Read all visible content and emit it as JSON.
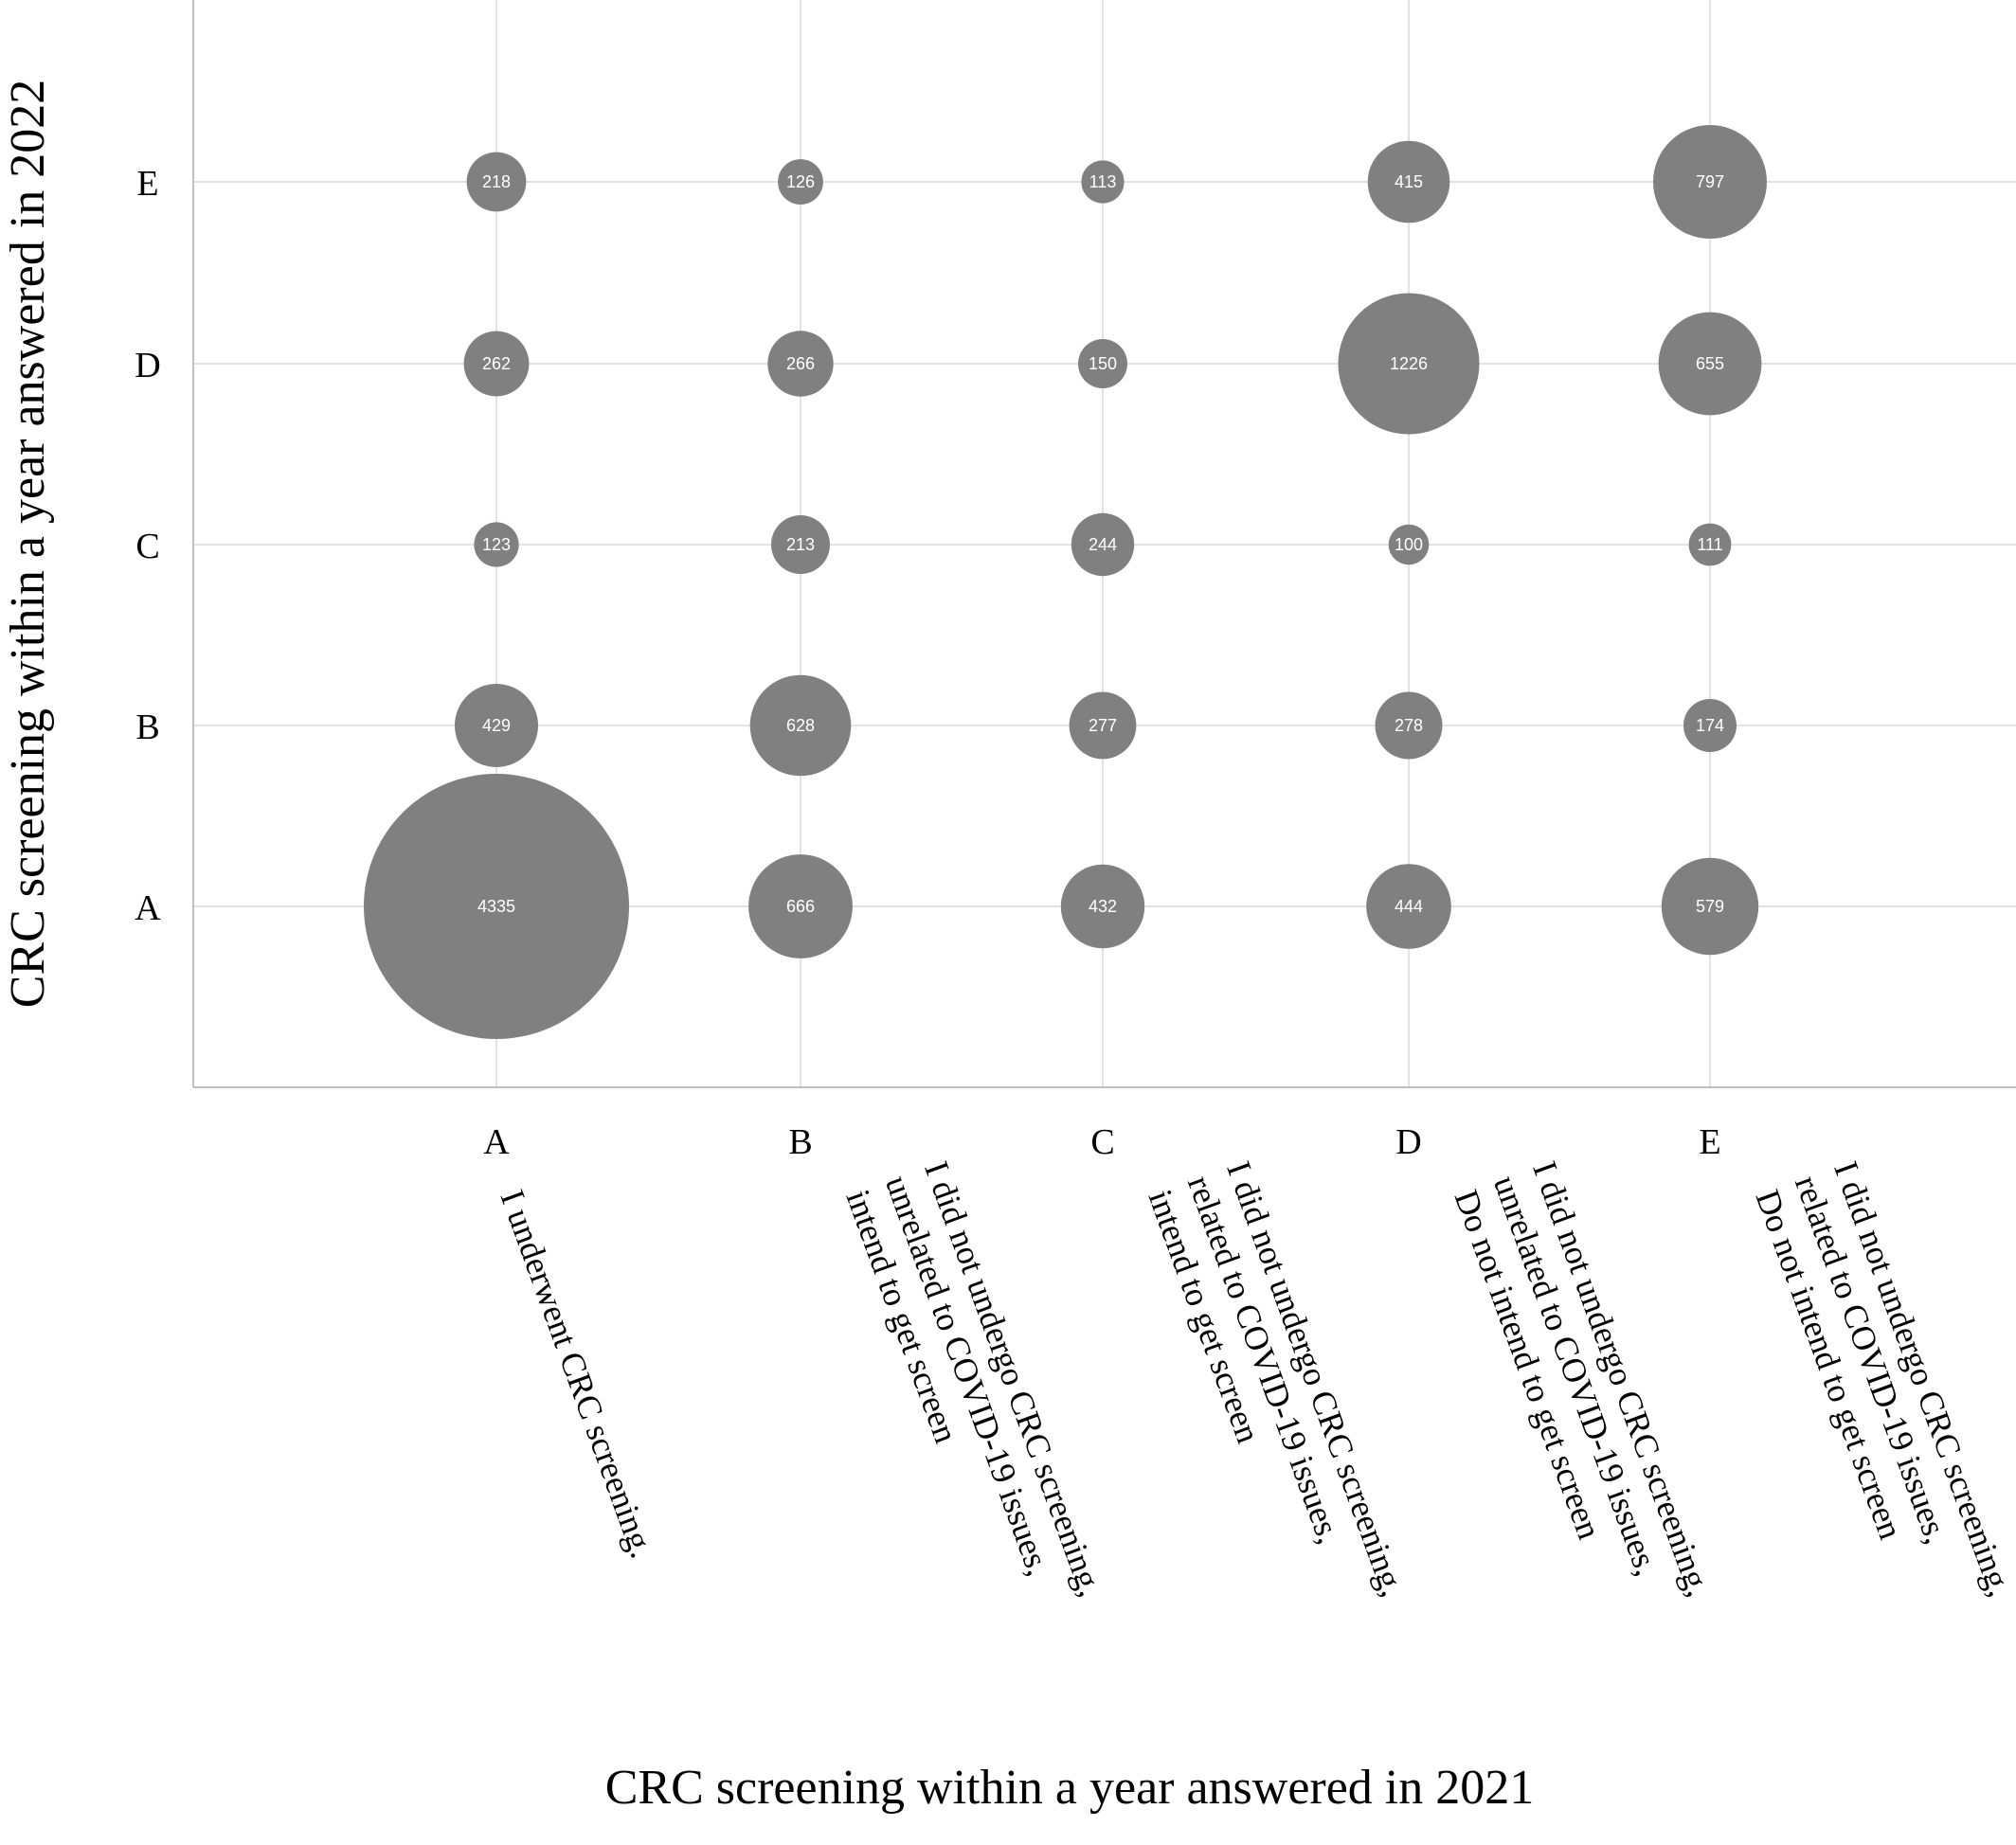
{
  "chart_data": {
    "type": "bubble",
    "title": "",
    "xlabel": "CRC screening within a year answered in 2021",
    "ylabel": "CRC screening within a year answered in 2022",
    "x_categories": [
      "A",
      "B",
      "C",
      "D",
      "E"
    ],
    "y_categories": [
      "A",
      "B",
      "C",
      "D",
      "E"
    ],
    "x_category_descriptions": [
      [
        "I underwent CRC screening."
      ],
      [
        "I did not undergo CRC screening,",
        "unrelated to COVID-19 issues,",
        "intend to get screen"
      ],
      [
        "I did not undergo CRC screening,",
        "related to COVID-19 issues,",
        "intend to get screen"
      ],
      [
        "I did not undergo CRC screening,",
        "unrelated to COVID-19 issues,",
        "Do not intend to get screen"
      ],
      [
        "I did not undergo CRC screening,",
        "related to COVID-19 issues,",
        "Do not intend to get screen"
      ]
    ],
    "points": [
      {
        "x": "A",
        "y": "A",
        "value": 4335
      },
      {
        "x": "A",
        "y": "B",
        "value": 429
      },
      {
        "x": "A",
        "y": "C",
        "value": 123
      },
      {
        "x": "A",
        "y": "D",
        "value": 262
      },
      {
        "x": "A",
        "y": "E",
        "value": 218
      },
      {
        "x": "B",
        "y": "A",
        "value": 666
      },
      {
        "x": "B",
        "y": "B",
        "value": 628
      },
      {
        "x": "B",
        "y": "C",
        "value": 213
      },
      {
        "x": "B",
        "y": "D",
        "value": 266
      },
      {
        "x": "B",
        "y": "E",
        "value": 126
      },
      {
        "x": "C",
        "y": "A",
        "value": 432
      },
      {
        "x": "C",
        "y": "B",
        "value": 277
      },
      {
        "x": "C",
        "y": "C",
        "value": 244
      },
      {
        "x": "C",
        "y": "D",
        "value": 150
      },
      {
        "x": "C",
        "y": "E",
        "value": 113
      },
      {
        "x": "D",
        "y": "A",
        "value": 444
      },
      {
        "x": "D",
        "y": "B",
        "value": 278
      },
      {
        "x": "D",
        "y": "C",
        "value": 100
      },
      {
        "x": "D",
        "y": "D",
        "value": 1226
      },
      {
        "x": "D",
        "y": "E",
        "value": 415
      },
      {
        "x": "E",
        "y": "A",
        "value": 579
      },
      {
        "x": "E",
        "y": "B",
        "value": 174
      },
      {
        "x": "E",
        "y": "C",
        "value": 111
      },
      {
        "x": "E",
        "y": "D",
        "value": 655
      },
      {
        "x": "E",
        "y": "E",
        "value": 797
      }
    ],
    "grid": true,
    "legend": "none",
    "colors": {
      "bubble": "#808080",
      "bubble_text": "#ffffff",
      "grid": "#d9d9d9"
    }
  }
}
